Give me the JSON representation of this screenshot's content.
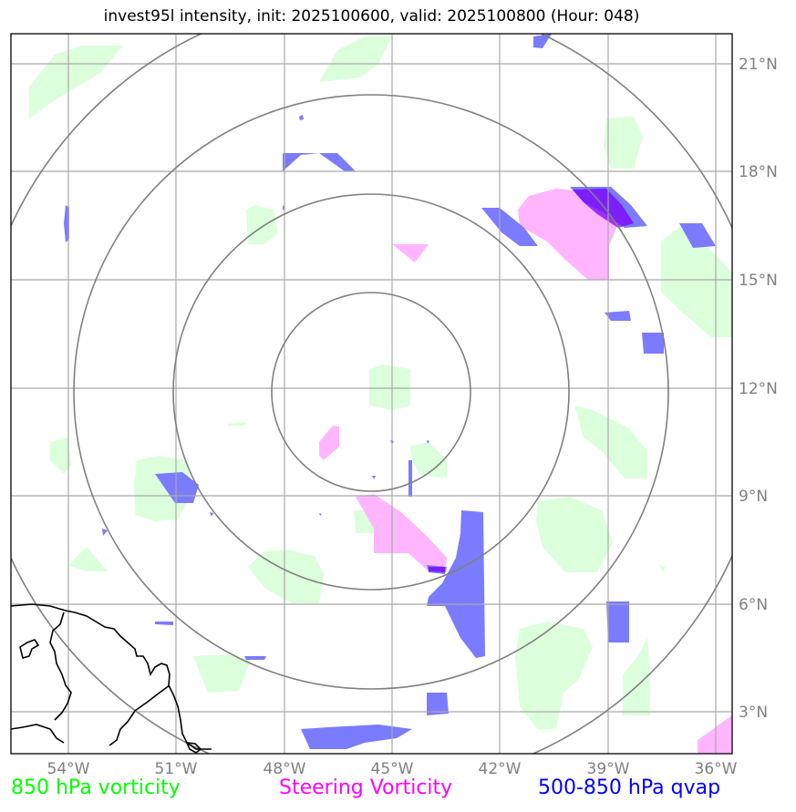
{
  "title": "invest95l intensity, init: 2025100600, valid: 2025100800 (Hour: 048)",
  "lon_ticks": [
    "54°W",
    "51°W",
    "48°W",
    "45°W",
    "42°W",
    "39°W",
    "36°W"
  ],
  "lat_ticks": [
    "21°N",
    "18°N",
    "15°N",
    "12°N",
    "9°N",
    "6°N",
    "3°N"
  ],
  "legend": {
    "green": "850 hPa vorticity",
    "magenta": "Steering Vorticity",
    "blue": "500-850 hPa qvap"
  },
  "colors": {
    "green": "#00ff00",
    "magenta": "#ff00ff",
    "blue": "#0000ff",
    "green_fill": "#dcffdc",
    "magenta_fill": "#ffb6ff",
    "blue_fill": "#7b7bff"
  },
  "extent": {
    "lon_min": -55,
    "lon_max": -35.5,
    "lat_min": 2,
    "lat_max": 22
  },
  "range_rings_center": {
    "lon": -45,
    "lat": 12
  }
}
